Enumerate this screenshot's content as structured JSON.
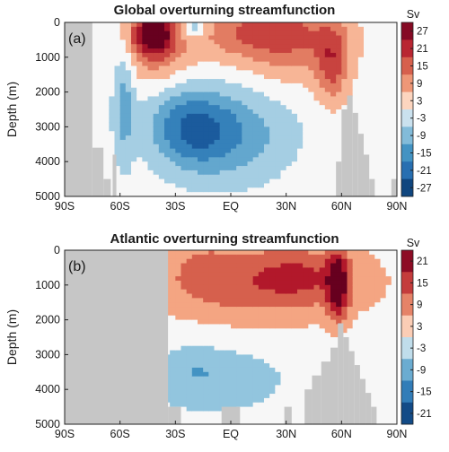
{
  "chart_data": [
    {
      "type": "heatmap",
      "panel_label": "(a)",
      "title": "Global overturning streamfunction",
      "ylabel": "Depth (m)",
      "xticks": [
        "90S",
        "60S",
        "30S",
        "EQ",
        "30N",
        "60N",
        "90N"
      ],
      "x_values": [
        -90,
        -60,
        -30,
        0,
        30,
        60,
        90
      ],
      "xlim": [
        -90,
        90
      ],
      "yticks": [
        "0",
        "1000",
        "2000",
        "3000",
        "4000",
        "5000"
      ],
      "y_values": [
        0,
        1000,
        2000,
        3000,
        4000,
        5000
      ],
      "ylim": [
        0,
        5000
      ],
      "colorbar_unit": "Sv",
      "colorbar_ticks": [
        "27",
        "21",
        "15",
        "9",
        "3",
        "-3",
        "-9",
        "-15",
        "-21",
        "-27"
      ],
      "colorbar_values": [
        27,
        21,
        15,
        9,
        3,
        -3,
        -9,
        -15,
        -21,
        -27
      ],
      "clim": [
        -30,
        30
      ],
      "features": [
        {
          "lat": -42,
          "depth": 300,
          "value": 30,
          "rlat": 8,
          "rdep": 450
        },
        {
          "lat": -40,
          "depth": 900,
          "value": 9,
          "rlat": 14,
          "rdep": 700
        },
        {
          "lat": -58,
          "depth": 2300,
          "value": -12,
          "rlat": 4,
          "rdep": 1200
        },
        {
          "lat": -23,
          "depth": 3000,
          "value": -17,
          "rlat": 15,
          "rdep": 800
        },
        {
          "lat": -3,
          "depth": 3300,
          "value": -10,
          "rlat": 20,
          "rdep": 900
        },
        {
          "lat": 12,
          "depth": 3100,
          "value": -4,
          "rlat": 22,
          "rdep": 1000
        },
        {
          "lat": -20,
          "depth": 150,
          "value": -14,
          "rlat": 5,
          "rdep": 220
        },
        {
          "lat": 20,
          "depth": 200,
          "value": 12,
          "rlat": 25,
          "rdep": 550
        },
        {
          "lat": 35,
          "depth": 1000,
          "value": 7,
          "rlat": 20,
          "rdep": 700
        },
        {
          "lat": 55,
          "depth": 1200,
          "value": 15,
          "rlat": 6,
          "rdep": 800
        },
        {
          "lat": 10,
          "depth": 350,
          "value": 5,
          "rlat": 30,
          "rdep": 700
        }
      ],
      "land": [
        [
          -90,
          0,
          -75,
          5000
        ],
        [
          -75,
          3600,
          -69,
          5000
        ],
        [
          -69,
          4500,
          -65,
          5000
        ],
        [
          -64,
          3800,
          -62,
          5000
        ],
        [
          57,
          4000,
          60,
          5000
        ],
        [
          60,
          2500,
          63,
          5000
        ],
        [
          63,
          2100,
          66,
          5000
        ],
        [
          66,
          2600,
          69,
          5000
        ],
        [
          69,
          3200,
          72,
          5000
        ],
        [
          72,
          3800,
          75,
          5000
        ],
        [
          75,
          4500,
          78,
          5000
        ],
        [
          87,
          4500,
          90,
          5000
        ]
      ]
    },
    {
      "type": "heatmap",
      "panel_label": "(b)",
      "title": "Atlantic overturning streamfunction",
      "ylabel": "Depth (m)",
      "xticks": [
        "90S",
        "60S",
        "30S",
        "EQ",
        "30N",
        "60N",
        "90N"
      ],
      "x_values": [
        -90,
        -60,
        -30,
        0,
        30,
        60,
        90
      ],
      "xlim": [
        -90,
        90
      ],
      "yticks": [
        "0",
        "1000",
        "2000",
        "3000",
        "4000",
        "5000"
      ],
      "y_values": [
        0,
        1000,
        2000,
        3000,
        4000,
        5000
      ],
      "ylim": [
        0,
        5000
      ],
      "colorbar_unit": "Sv",
      "colorbar_ticks": [
        "21",
        "15",
        "9",
        "3",
        "-3",
        "-9",
        "-15",
        "-21"
      ],
      "colorbar_values": [
        21,
        15,
        9,
        3,
        -3,
        -9,
        -15,
        -21
      ],
      "clim": [
        -24,
        24
      ],
      "features": [
        {
          "lat": 15,
          "depth": 900,
          "value": 14,
          "rlat": 40,
          "rdep": 800
        },
        {
          "lat": 58,
          "depth": 1000,
          "value": 22,
          "rlat": 4,
          "rdep": 700
        },
        {
          "lat": 40,
          "depth": 700,
          "value": 6,
          "rlat": 15,
          "rdep": 500
        },
        {
          "lat": -15,
          "depth": 500,
          "value": 4,
          "rlat": 10,
          "rdep": 500
        },
        {
          "lat": -10,
          "depth": 3700,
          "value": -7,
          "rlat": 28,
          "rdep": 700
        },
        {
          "lat": -20,
          "depth": 3400,
          "value": -3,
          "rlat": 10,
          "rdep": 400
        }
      ],
      "land": [
        [
          -90,
          0,
          -34,
          5000
        ],
        [
          -34,
          4500,
          -27,
          5000
        ],
        [
          -5,
          4500,
          5,
          5000
        ],
        [
          29,
          4500,
          33,
          5000
        ],
        [
          40,
          4000,
          44,
          5000
        ],
        [
          44,
          3600,
          49,
          5000
        ],
        [
          49,
          3200,
          54,
          5000
        ],
        [
          54,
          2800,
          58,
          5000
        ],
        [
          58,
          2100,
          61,
          5000
        ],
        [
          61,
          2500,
          64,
          5000
        ],
        [
          64,
          2900,
          67,
          5000
        ],
        [
          67,
          3300,
          70,
          5000
        ],
        [
          70,
          3700,
          73,
          5000
        ],
        [
          73,
          4100,
          76,
          5000
        ],
        [
          76,
          4500,
          79,
          5000
        ]
      ]
    }
  ]
}
